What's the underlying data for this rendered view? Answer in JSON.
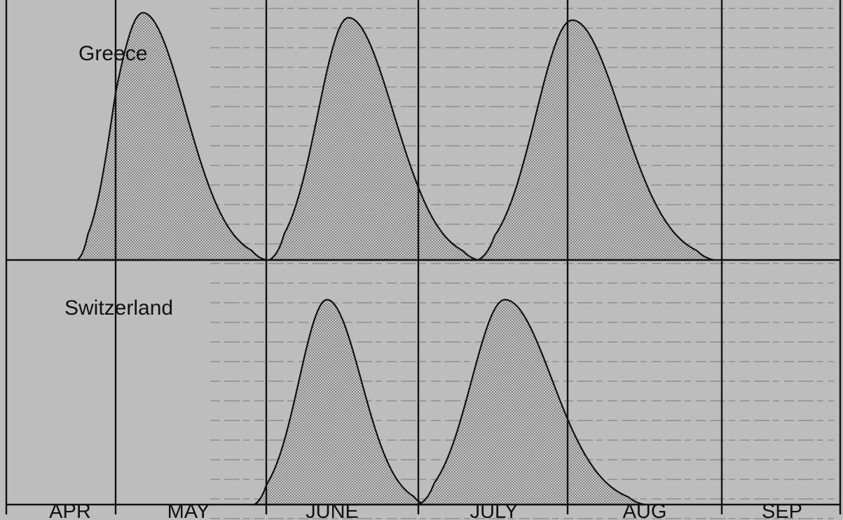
{
  "chart_data": {
    "type": "area",
    "months": [
      "APR",
      "MAY",
      "JUNE",
      "JULY",
      "AUG",
      "SEP"
    ],
    "panels": [
      {
        "country": "Greece",
        "series": [
          {
            "start": 0.65,
            "peak": 1.18,
            "end": 2.0,
            "height": 1.0
          },
          {
            "start": 2.02,
            "peak": 2.54,
            "end": 3.4,
            "height": 0.98
          },
          {
            "start": 3.4,
            "peak": 4.03,
            "end": 4.95,
            "height": 0.97
          }
        ]
      },
      {
        "country": "Switzerland",
        "series": [
          {
            "start": 1.92,
            "peak": 2.4,
            "end": 3.05,
            "height": 0.9
          },
          {
            "start": 3.0,
            "peak": 3.58,
            "end": 4.5,
            "height": 0.9
          }
        ]
      }
    ]
  }
}
